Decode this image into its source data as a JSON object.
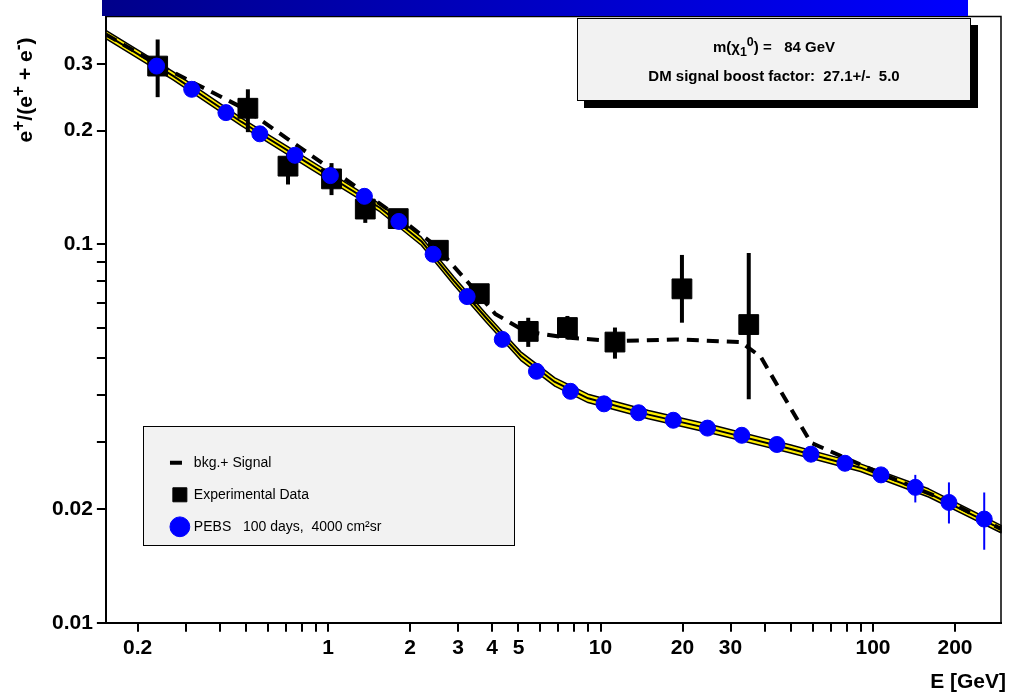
{
  "chart_data": {
    "type": "scatter",
    "xlabel": "E [GeV]",
    "ylabel": "e$^{+}$/(e$^{+}$ + e$^{-}$)",
    "annotations": [
      "m(χ$_{1}$$^{0}$) =   84 GeV",
      "DM signal boost factor:  27.1+/-  5.0"
    ],
    "log": "xy",
    "grid": false,
    "legend": "bottom left",
    "xlim": [
      0.153,
      295
    ],
    "ylim": [
      0.01,
      0.4
    ],
    "xticks": [
      0.2,
      {
        "value": 0.3,
        "label": null
      },
      {
        "value": 0.4,
        "label": null
      },
      {
        "value": 0.5,
        "label": null
      },
      {
        "value": 0.6,
        "label": null
      },
      {
        "value": 0.7,
        "label": null
      },
      {
        "value": 0.8,
        "label": null
      },
      {
        "value": 0.9,
        "label": null
      },
      1,
      2,
      3,
      4,
      5,
      {
        "value": 6,
        "label": null
      },
      {
        "value": 7,
        "label": null
      },
      {
        "value": 8,
        "label": null
      },
      {
        "value": 9,
        "label": null
      },
      10,
      20,
      30,
      {
        "value": 40,
        "label": null
      },
      {
        "value": 50,
        "label": null
      },
      {
        "value": 60,
        "label": null
      },
      {
        "value": 70,
        "label": null
      },
      {
        "value": 80,
        "label": null
      },
      {
        "value": 90,
        "label": null
      },
      100,
      200
    ],
    "yticks": [
      0.01,
      0.02,
      {
        "value": 0.03,
        "label": null
      },
      {
        "value": 0.04,
        "label": null
      },
      {
        "value": 0.05,
        "label": null
      },
      {
        "value": 0.06,
        "label": null
      },
      {
        "value": 0.07,
        "label": null
      },
      {
        "value": 0.08,
        "label": null
      },
      {
        "value": 0.09,
        "label": null
      },
      0.1,
      0.2,
      0.3
    ],
    "series": [
      {
        "type": "line",
        "color": "#000000",
        "marker": "none",
        "x": [
          0.153,
          0.27,
          0.48,
          0.88,
          1.55,
          2.2,
          2.9,
          3.8,
          5.1,
          6.8,
          9,
          15,
          27,
          50,
          90,
          160,
          295
        ],
        "values": [
          0.359,
          0.279,
          0.211,
          0.161,
          0.125,
          0.102,
          0.08,
          0.064,
          0.0507,
          0.0433,
          0.0392,
          0.0355,
          0.0322,
          0.0288,
          0.0257,
          0.022,
          0.0177
        ],
        "lower": [
          0.35,
          0.272,
          0.206,
          0.157,
          0.122,
          0.0995,
          0.078,
          0.0624,
          0.0494,
          0.0422,
          0.0382,
          0.0346,
          0.0314,
          0.0281,
          0.0251,
          0.0215,
          0.0173
        ],
        "upper": [
          0.368,
          0.286,
          0.216,
          0.165,
          0.128,
          0.1045,
          0.082,
          0.0656,
          0.052,
          0.0444,
          0.0402,
          0.0364,
          0.033,
          0.0295,
          0.0263,
          0.0226,
          0.0181
        ]
      },
      {
        "type": "line",
        "name": "bkg.+ Signal",
        "color": "#000000",
        "marker": "none",
        "line_style": "dashed",
        "x": [
          0.153,
          0.237,
          0.495,
          1.2,
          1.76,
          2.47,
          3.19,
          4.11,
          5.3,
          7.43,
          11.4,
          18.9,
          32.7,
          38.7,
          47.9,
          59.2,
          107,
          190,
          295
        ],
        "values": [
          0.359,
          0.299,
          0.228,
          0.146,
          0.12,
          0.0994,
          0.0809,
          0.0655,
          0.0589,
          0.0568,
          0.0555,
          0.0561,
          0.0552,
          0.0505,
          0.0388,
          0.0299,
          0.0248,
          0.0209,
          0.0177
        ]
      },
      {
        "type": "scatter",
        "name": "Experimental Data",
        "color": "#000000",
        "marker": "square",
        "x": [
          0.237,
          0.508,
          0.713,
          1.03,
          1.37,
          1.81,
          2.54,
          3.59,
          5.43,
          7.56,
          11.3,
          19.9,
          35.0
        ],
        "values": [
          0.296,
          0.229,
          0.161,
          0.149,
          0.124,
          0.117,
          0.0965,
          0.0741,
          0.0589,
          0.0603,
          0.0552,
          0.0763,
          0.0614
        ],
        "errors": [
          [
            0.245,
            0.348
          ],
          [
            0.198,
            0.257
          ],
          [
            0.144,
            0.174
          ],
          [
            0.135,
            0.164
          ],
          [
            0.114,
            0.124
          ],
          [
            0.11,
            0.124
          ],
          [
            0.0921,
            0.101
          ],
          [
            0.0698,
            0.0786
          ],
          [
            0.0536,
            0.064
          ],
          [
            0.0561,
            0.0647
          ],
          [
            0.0499,
            0.0603
          ],
          [
            0.0621,
            0.0938
          ],
          [
            0.039,
            0.0949
          ]
        ]
      },
      {
        "type": "scatter",
        "name": "PEBS   100 days,  4000 cm²sr",
        "color": "#0000ff",
        "marker": "circle",
        "x": [
          0.235,
          0.316,
          0.422,
          0.562,
          0.756,
          1.02,
          1.36,
          1.82,
          2.43,
          3.24,
          4.36,
          5.82,
          7.76,
          10.3,
          13.8,
          18.5,
          24.7,
          33.0,
          44.4,
          59.2,
          78.9,
          107,
          143,
          190,
          256
        ],
        "values": [
          0.296,
          0.257,
          0.223,
          0.196,
          0.172,
          0.152,
          0.134,
          0.115,
          0.0942,
          0.0728,
          0.0561,
          0.0462,
          0.0409,
          0.0379,
          0.0359,
          0.0343,
          0.0327,
          0.0313,
          0.0296,
          0.0279,
          0.0264,
          0.0246,
          0.0228,
          0.0208,
          0.0188
        ],
        "errors": [
          null,
          null,
          null,
          null,
          null,
          null,
          null,
          null,
          null,
          null,
          null,
          null,
          null,
          null,
          null,
          null,
          null,
          null,
          null,
          null,
          null,
          null,
          [
            0.0208,
            0.0246
          ],
          [
            0.0183,
            0.0235
          ],
          [
            0.0156,
            0.0221
          ]
        ]
      }
    ]
  }
}
